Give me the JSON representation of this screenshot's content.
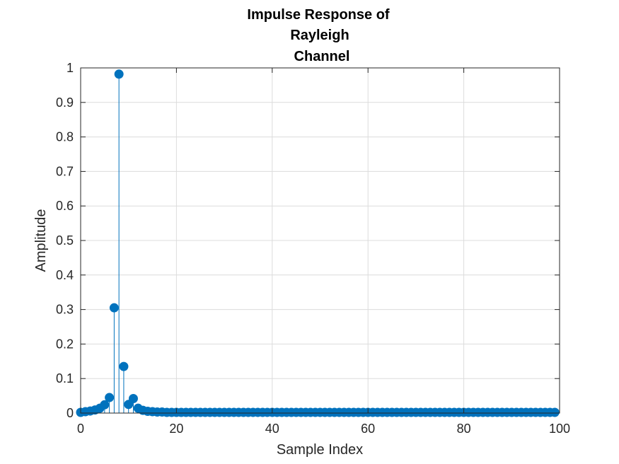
{
  "chart_data": {
    "type": "stem",
    "title_lines": [
      "Impulse Response of",
      "Rayleigh",
      "Channel"
    ],
    "xlabel": "Sample Index",
    "ylabel": "Amplitude",
    "xlim": [
      0,
      100
    ],
    "ylim": [
      0,
      1
    ],
    "xticks": [
      0,
      20,
      40,
      60,
      80,
      100
    ],
    "yticks": [
      0,
      0.1,
      0.2,
      0.3,
      0.4,
      0.5,
      0.6,
      0.7,
      0.8,
      0.9,
      1
    ],
    "ytick_labels": [
      "0",
      "0.1",
      "0.2",
      "0.3",
      "0.4",
      "0.5",
      "0.6",
      "0.7",
      "0.8",
      "0.9",
      "1"
    ],
    "xtick_labels": [
      "0",
      "20",
      "40",
      "60",
      "80",
      "100"
    ],
    "grid": true,
    "series_color": "#0072BD",
    "x": [
      0,
      1,
      2,
      3,
      4,
      5,
      6,
      7,
      8,
      9,
      10,
      11,
      12,
      13,
      14,
      15,
      16,
      17,
      18,
      19,
      20,
      21,
      22,
      23,
      24,
      25,
      26,
      27,
      28,
      29,
      30,
      31,
      32,
      33,
      34,
      35,
      36,
      37,
      38,
      39,
      40,
      41,
      42,
      43,
      44,
      45,
      46,
      47,
      48,
      49,
      50,
      51,
      52,
      53,
      54,
      55,
      56,
      57,
      58,
      59,
      60,
      61,
      62,
      63,
      64,
      65,
      66,
      67,
      68,
      69,
      70,
      71,
      72,
      73,
      74,
      75,
      76,
      77,
      78,
      79,
      80,
      81,
      82,
      83,
      84,
      85,
      86,
      87,
      88,
      89,
      90,
      91,
      92,
      93,
      94,
      95,
      96,
      97,
      98,
      99
    ],
    "y": [
      0.002,
      0.004,
      0.006,
      0.009,
      0.014,
      0.024,
      0.045,
      0.305,
      0.982,
      0.135,
      0.025,
      0.042,
      0.014,
      0.008,
      0.005,
      0.004,
      0.003,
      0.003,
      0.002,
      0.002,
      0.002,
      0.002,
      0.002,
      0.002,
      0.002,
      0.002,
      0.002,
      0.002,
      0.002,
      0.002,
      0.002,
      0.002,
      0.002,
      0.002,
      0.002,
      0.002,
      0.002,
      0.002,
      0.002,
      0.002,
      0.002,
      0.002,
      0.002,
      0.002,
      0.002,
      0.002,
      0.002,
      0.002,
      0.002,
      0.002,
      0.002,
      0.002,
      0.002,
      0.002,
      0.002,
      0.002,
      0.002,
      0.002,
      0.002,
      0.002,
      0.002,
      0.002,
      0.002,
      0.002,
      0.002,
      0.002,
      0.002,
      0.002,
      0.002,
      0.002,
      0.002,
      0.002,
      0.002,
      0.002,
      0.002,
      0.002,
      0.002,
      0.002,
      0.002,
      0.002,
      0.002,
      0.002,
      0.002,
      0.002,
      0.002,
      0.002,
      0.002,
      0.002,
      0.002,
      0.002,
      0.002,
      0.002,
      0.002,
      0.002,
      0.002,
      0.002,
      0.002,
      0.002,
      0.002,
      0.002
    ]
  }
}
